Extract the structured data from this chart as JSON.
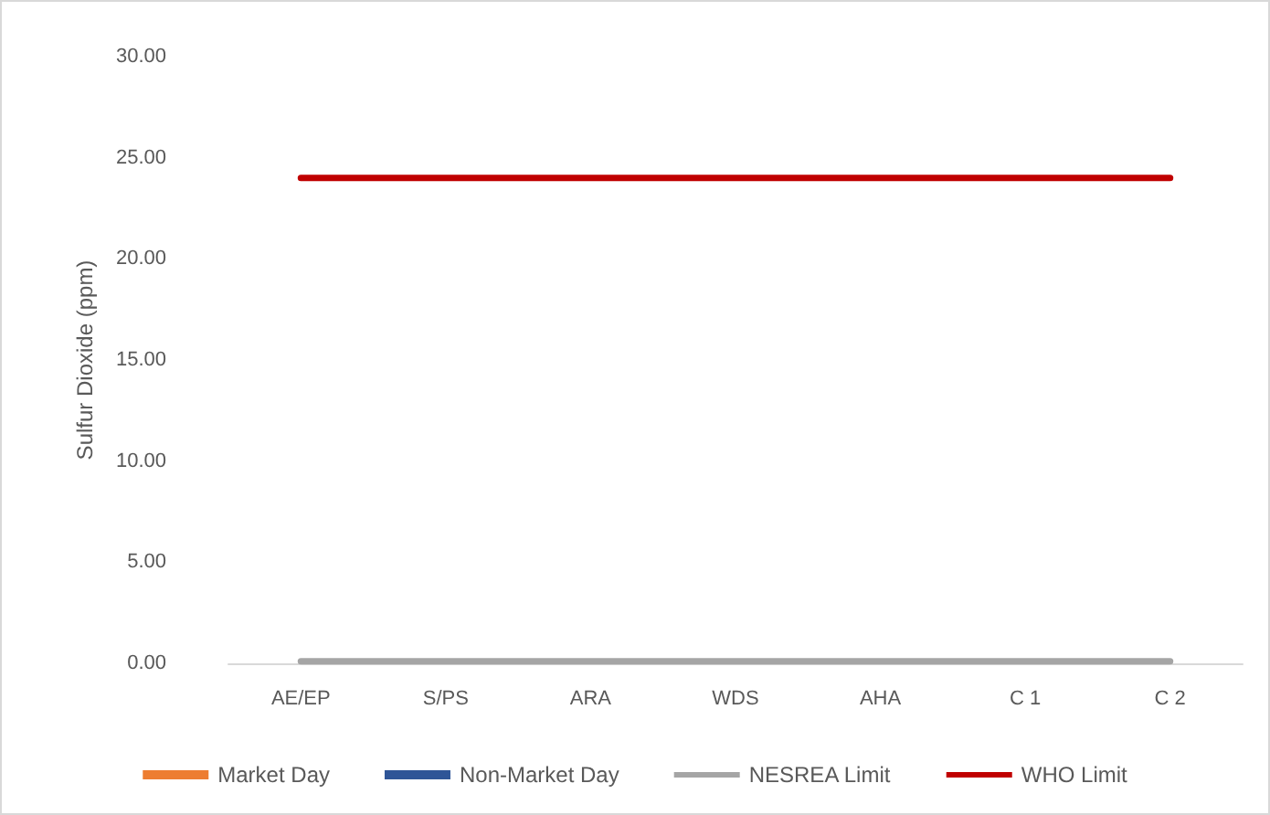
{
  "chart_data": {
    "type": "bar",
    "ylabel": "Sulfur Dioxide (ppm)",
    "categories": [
      "AE/EP",
      "S/PS",
      "ARA",
      "WDS",
      "AHA",
      "C 1",
      "C 2"
    ],
    "series": [
      {
        "name": "Market Day",
        "color": "#ed7d31",
        "values": [
          0,
          0,
          0,
          0,
          0,
          0,
          0
        ]
      },
      {
        "name": "Non-Market Day",
        "color": "#2f5597",
        "values": [
          0,
          0,
          0,
          0,
          0,
          0,
          0
        ]
      },
      {
        "name": "NESREA Limit",
        "type": "line",
        "color": "#a5a5a5",
        "values": [
          0.1,
          0.1,
          0.1,
          0.1,
          0.1,
          0.1,
          0.1
        ]
      },
      {
        "name": "WHO Limit",
        "type": "line",
        "color": "#c00000",
        "values": [
          24,
          24,
          24,
          24,
          24,
          24,
          24
        ]
      }
    ],
    "ylim": [
      0,
      30
    ],
    "yticks": [
      {
        "value": 0,
        "label": "0.00"
      },
      {
        "value": 5,
        "label": "5.00"
      },
      {
        "value": 10,
        "label": "10.00"
      },
      {
        "value": 15,
        "label": "15.00"
      },
      {
        "value": 20,
        "label": "20.00"
      },
      {
        "value": 25,
        "label": "25.00"
      },
      {
        "value": 30,
        "label": "30.00"
      }
    ],
    "grid": false,
    "legend": "bottom",
    "marker": "none",
    "line_style": "solid"
  }
}
